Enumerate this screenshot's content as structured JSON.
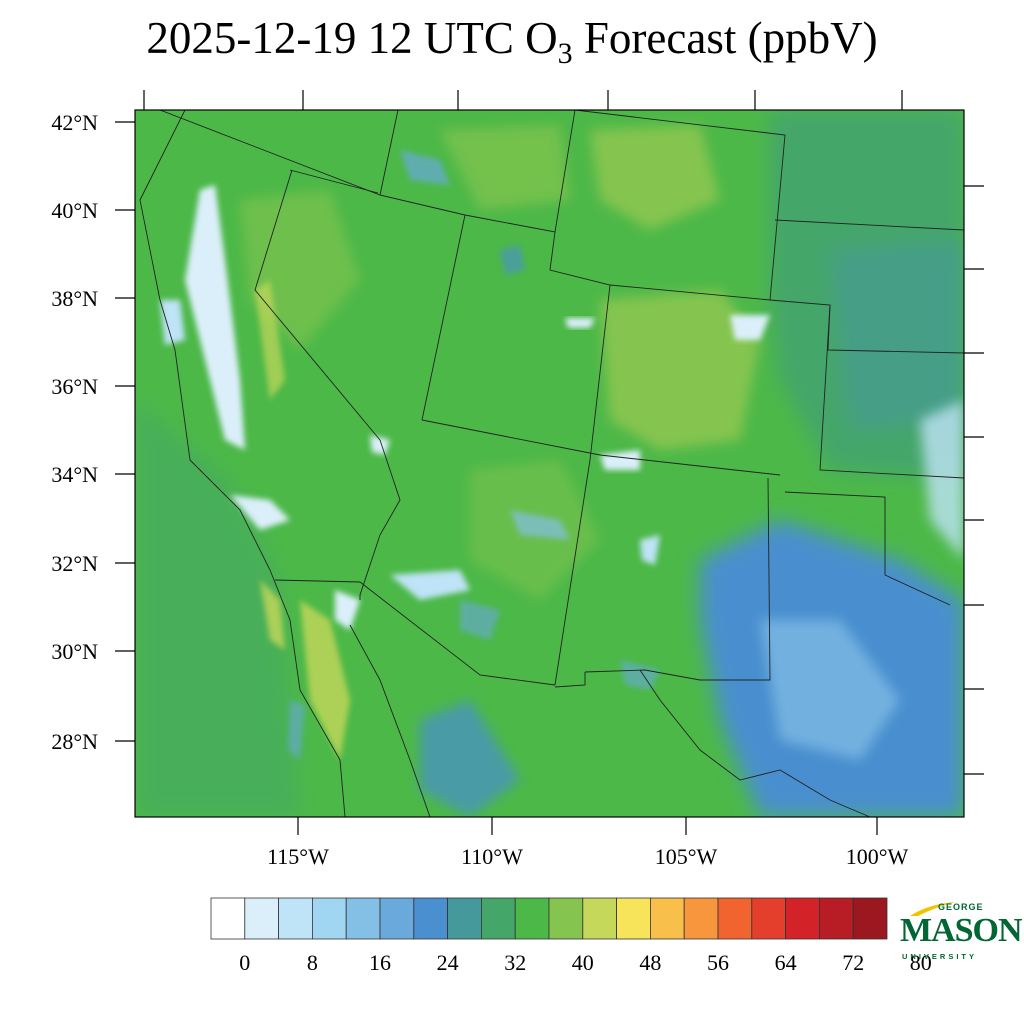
{
  "title": {
    "prefix": "2025-12-19 12 UTC O",
    "subscript": "3",
    "suffix": " Forecast (ppbV)"
  },
  "map": {
    "lat_labels": [
      "42°N",
      "40°N",
      "38°N",
      "36°N",
      "34°N",
      "32°N",
      "30°N",
      "28°N"
    ],
    "lon_labels": [
      "115°W",
      "110°W",
      "105°W",
      "100°W"
    ],
    "background_color": "#4cb848",
    "border_color": "#222222"
  },
  "colorbar": {
    "colors": [
      "#ffffff",
      "#dbeffa",
      "#bfe3f7",
      "#a1d6f2",
      "#84bfe6",
      "#69a9dc",
      "#4a8fcf",
      "#46999b",
      "#45a66a",
      "#4cb848",
      "#85c54f",
      "#c5d85a",
      "#f8e45a",
      "#f8bf4a",
      "#f7963c",
      "#f16430",
      "#e43f2c",
      "#d42328",
      "#b81c24",
      "#9b1820"
    ],
    "labels": [
      "0",
      "8",
      "16",
      "24",
      "32",
      "40",
      "48",
      "56",
      "64",
      "72",
      "80"
    ]
  },
  "logo": {
    "line1": "GEORGE",
    "line2": "MASON",
    "line3": "UNIVERSITY",
    "color": "#006633",
    "accent": "#f2c300"
  }
}
